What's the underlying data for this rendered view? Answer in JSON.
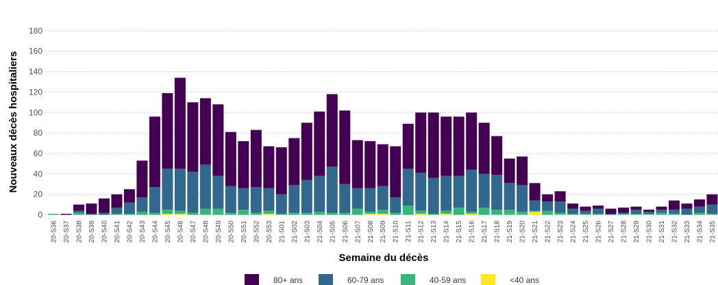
{
  "chart_data": {
    "type": "stacked_bar",
    "x_label": "Semaine du décès",
    "y_label": "Nouveaux décès hospitaliers",
    "categories": [
      "20-S36",
      "20-S37",
      "20-S38",
      "20-S39",
      "20-S40",
      "20-S41",
      "20-S42",
      "20-S43",
      "20-S44",
      "20-S45",
      "20-S46",
      "20-S47",
      "20-S48",
      "20-S49",
      "20-S50",
      "20-S51",
      "20-S52",
      "20-S53",
      "21-S01",
      "21-S02",
      "21-S03",
      "21-S04",
      "21-S05",
      "21-S06",
      "21-S07",
      "21-S08",
      "21-S09",
      "21-S10",
      "21-S11",
      "21-S12",
      "21-S13",
      "21-S14",
      "21-S15",
      "21-S16",
      "21-S17",
      "21-S18",
      "21-S19",
      "21-S20",
      "21-S21",
      "21-S22",
      "21-S23",
      "21-S24",
      "21-S25",
      "21-S26",
      "21-S27",
      "21-S28",
      "21-S29",
      "21-S30",
      "21-S31",
      "21-S32",
      "21-S33",
      "21-S34",
      "21-S35"
    ],
    "series": [
      {
        "name": "80+ ans",
        "color": "#440154",
        "values": [
          0,
          1,
          6,
          10,
          14,
          13,
          13,
          36,
          69,
          74,
          89,
          68,
          65,
          70,
          53,
          46,
          56,
          41,
          46,
          46,
          56,
          63,
          71,
          72,
          47,
          46,
          41,
          50,
          44,
          59,
          64,
          58,
          58,
          56,
          50,
          38,
          24,
          28,
          17,
          7,
          10,
          5,
          4,
          3,
          5,
          5,
          3,
          2,
          3,
          9,
          5,
          7,
          10
        ]
      },
      {
        "name": "60-79 ans",
        "color": "#31688e",
        "values": [
          0,
          0,
          2,
          1,
          2,
          6,
          11,
          14,
          25,
          40,
          41,
          40,
          43,
          32,
          26,
          21,
          25,
          22,
          19,
          27,
          32,
          35,
          45,
          28,
          20,
          23,
          23,
          15,
          36,
          37,
          35,
          34,
          31,
          41,
          33,
          34,
          26,
          26,
          10,
          9,
          11,
          5,
          3,
          5,
          1,
          1,
          4,
          2,
          3,
          4,
          6,
          6,
          9
        ]
      },
      {
        "name": "40-59 ans",
        "color": "#35b779",
        "values": [
          1,
          0,
          2,
          0,
          0,
          1,
          1,
          3,
          2,
          4,
          3,
          2,
          6,
          6,
          2,
          5,
          2,
          3,
          1,
          2,
          2,
          3,
          2,
          2,
          6,
          2,
          4,
          2,
          9,
          3,
          1,
          3,
          7,
          2,
          7,
          5,
          5,
          3,
          1,
          4,
          2,
          1,
          1,
          1,
          0,
          1,
          1,
          1,
          2,
          1,
          0,
          2,
          1
        ]
      },
      {
        "name": "<40 ans",
        "color": "#fde725",
        "values": [
          0,
          0,
          0,
          0,
          0,
          0,
          0,
          0,
          0,
          1,
          1,
          0,
          0,
          0,
          0,
          0,
          0,
          1,
          0,
          0,
          0,
          0,
          0,
          0,
          0,
          1,
          1,
          0,
          0,
          1,
          0,
          1,
          0,
          1,
          0,
          0,
          0,
          0,
          3,
          0,
          0,
          0,
          0,
          0,
          0,
          0,
          0,
          0,
          0,
          0,
          0,
          0,
          0
        ]
      }
    ],
    "ylim": [
      -3,
      200
    ],
    "yticks": [
      0,
      20,
      40,
      60,
      80,
      100,
      120,
      140,
      160,
      180
    ],
    "grid": true,
    "legend_position": "bottom"
  }
}
